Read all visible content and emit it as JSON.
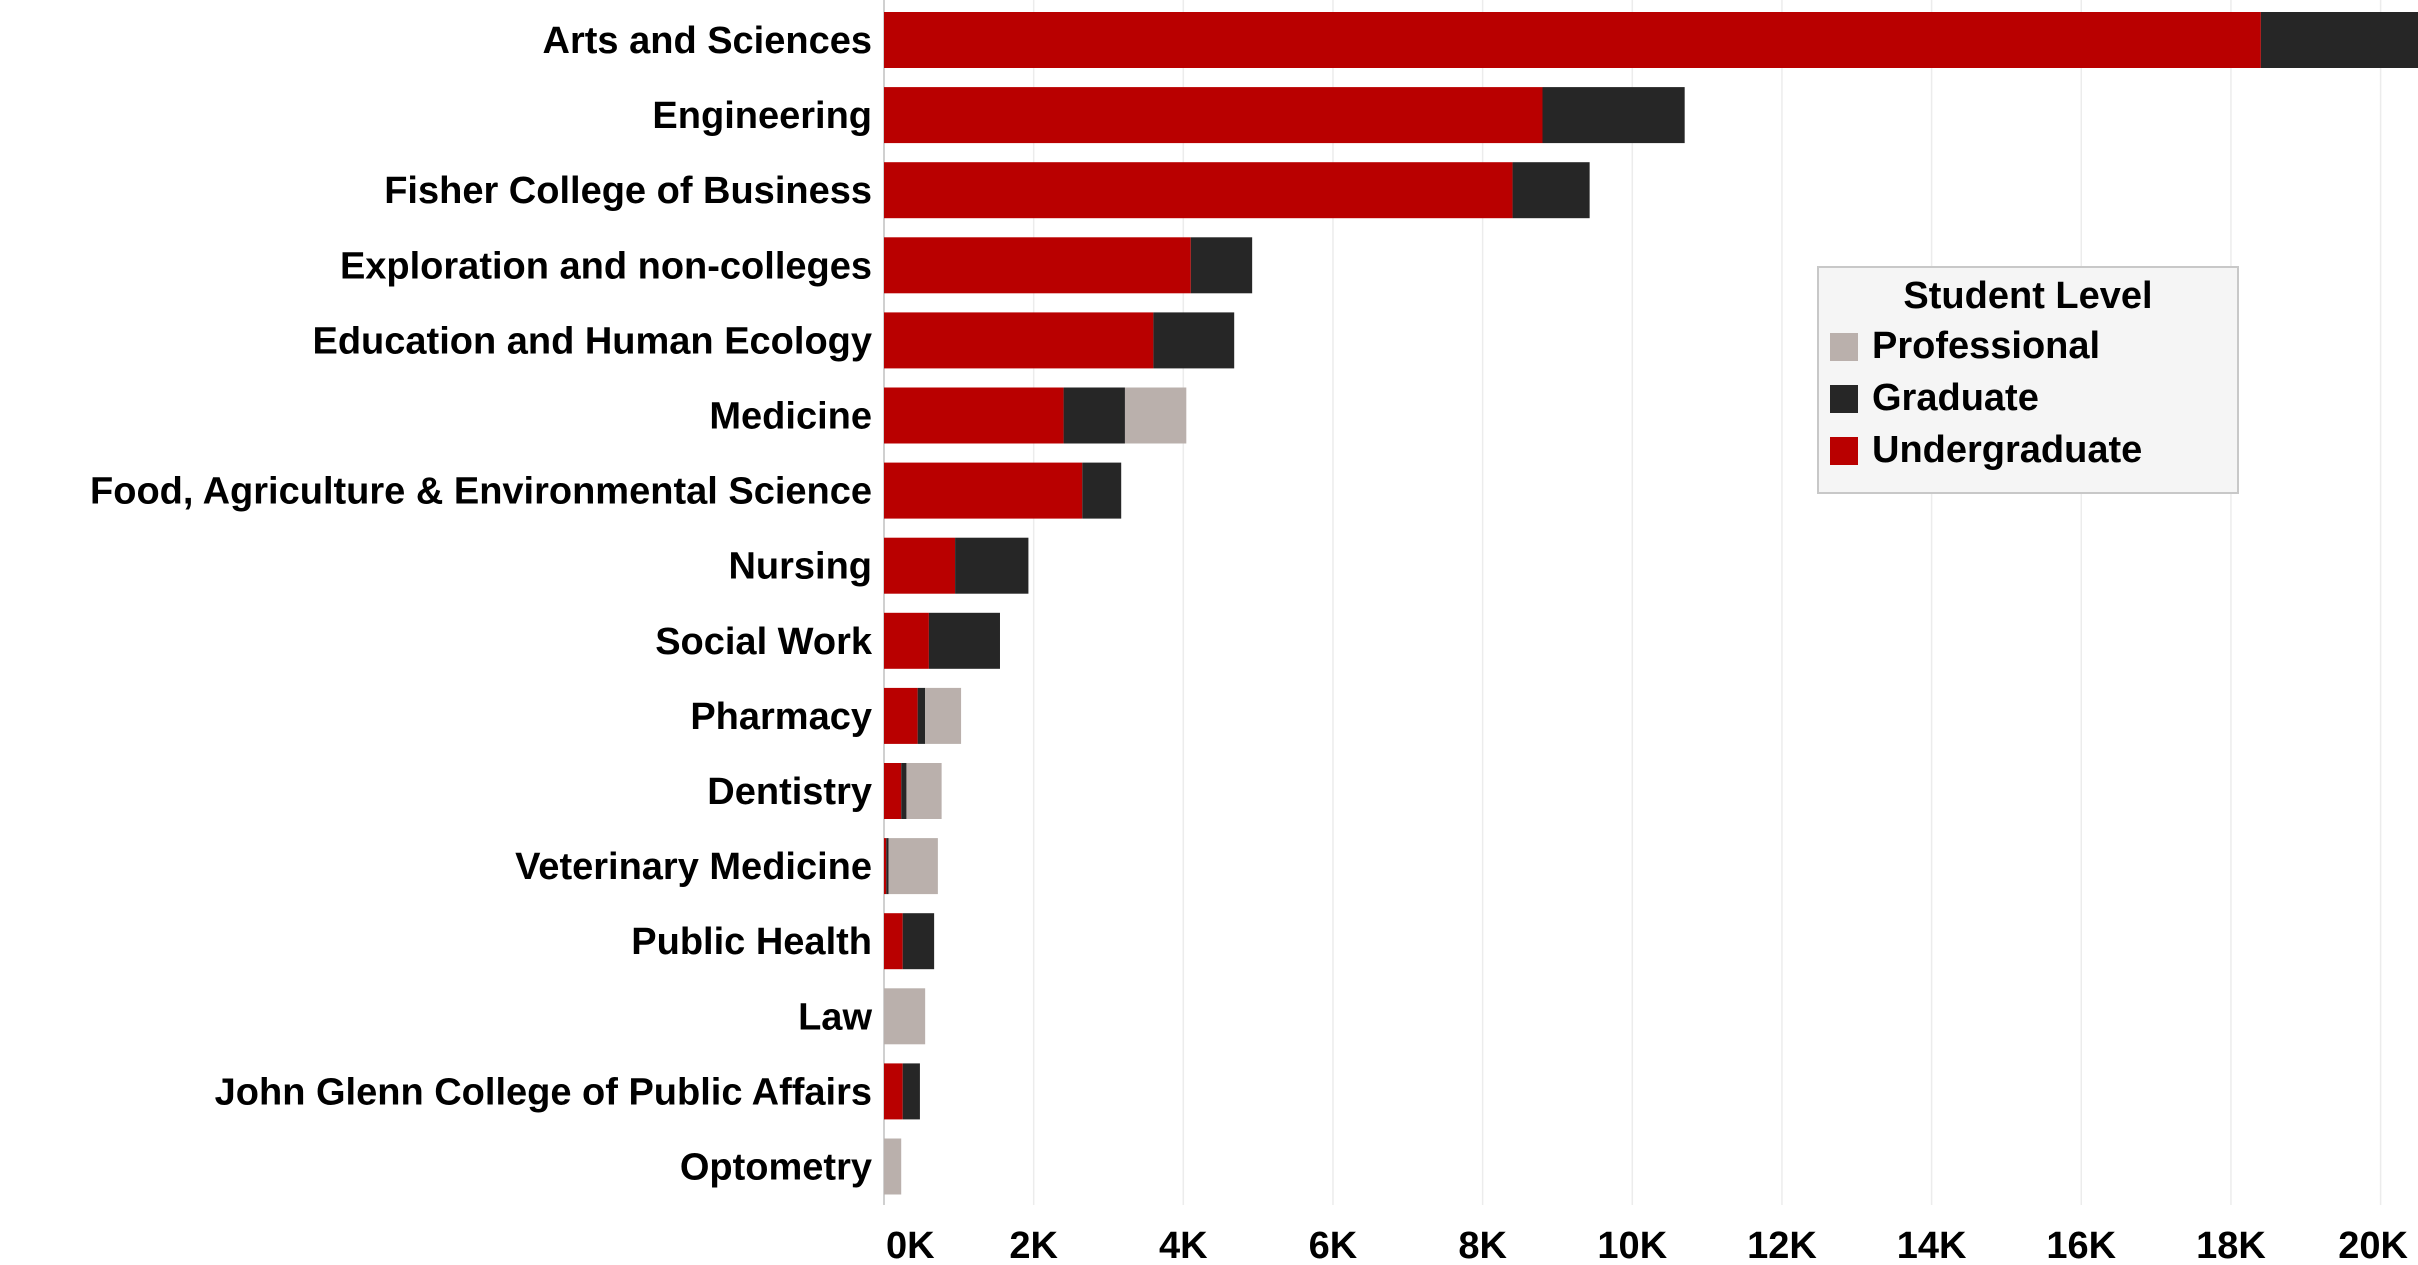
{
  "chart_data": {
    "type": "bar",
    "orientation": "horizontal",
    "stacked": true,
    "categories": [
      "Arts and Sciences",
      "Engineering",
      "Fisher College of Business",
      "Exploration and non-colleges",
      "Education and Human Ecology",
      "Medicine",
      "Food, Agriculture & Environmental Science",
      "Nursing",
      "Social Work",
      "Pharmacy",
      "Dentistry",
      "Veterinary Medicine",
      "Public Health",
      "Law",
      "John Glenn College of Public Affairs",
      "Optometry"
    ],
    "series": [
      {
        "name": "Undergraduate",
        "color": "#b90000",
        "values": [
          18400,
          8800,
          8400,
          4100,
          3600,
          2400,
          2650,
          950,
          600,
          450,
          230,
          30,
          250,
          0,
          250,
          0
        ]
      },
      {
        "name": "Graduate",
        "color": "#262626",
        "values": [
          3100,
          1900,
          1030,
          820,
          1080,
          820,
          520,
          980,
          950,
          100,
          70,
          30,
          420,
          0,
          230,
          0
        ]
      },
      {
        "name": "Professional",
        "color": "#bab0ac",
        "values": [
          0,
          0,
          0,
          0,
          0,
          820,
          0,
          0,
          0,
          480,
          470,
          660,
          0,
          550,
          0,
          230
        ]
      }
    ],
    "xlim": [
      0,
      20500
    ],
    "xticks": [
      0,
      2000,
      4000,
      6000,
      8000,
      10000,
      12000,
      14000,
      16000,
      18000,
      20000
    ],
    "xtick_labels": [
      "0K",
      "2K",
      "4K",
      "6K",
      "8K",
      "10K",
      "12K",
      "14K",
      "16K",
      "18K",
      "20K"
    ],
    "grid": "vertical",
    "title": "",
    "xlabel": "",
    "ylabel": "",
    "legend": {
      "title": "Student Level",
      "placement": "upper-right",
      "items": [
        {
          "name": "Professional",
          "color": "#bab0ac"
        },
        {
          "name": "Graduate",
          "color": "#262626"
        },
        {
          "name": "Undergraduate",
          "color": "#b90000"
        }
      ]
    }
  }
}
